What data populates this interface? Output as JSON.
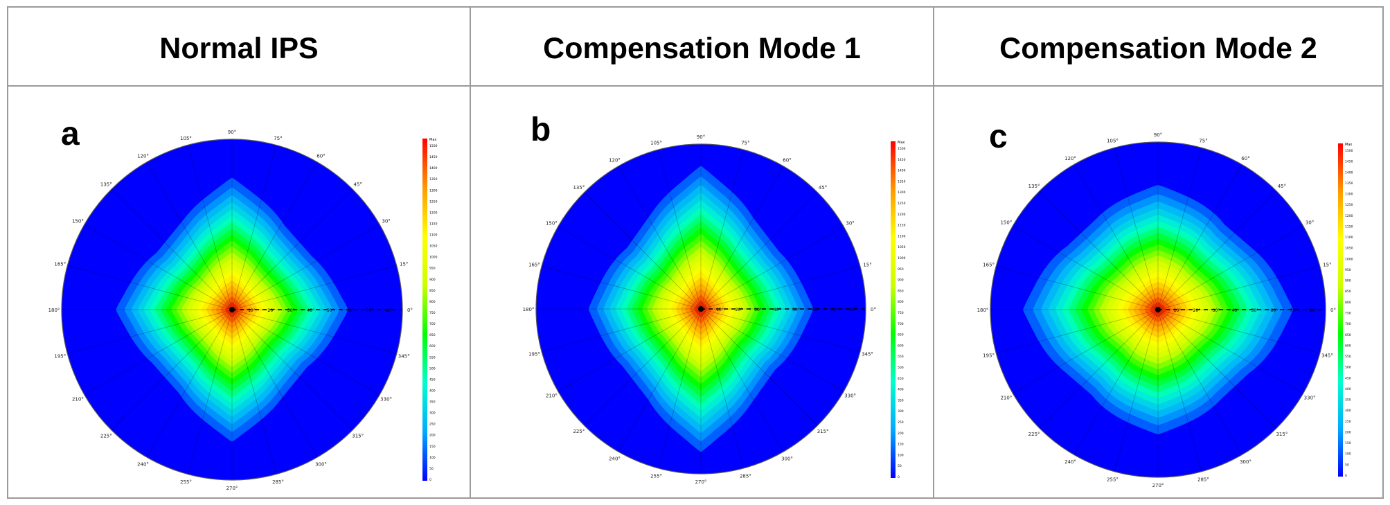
{
  "figure": {
    "panels": [
      {
        "title": "Normal IPS",
        "letter": "a"
      },
      {
        "title": "Compensation Mode 1",
        "letter": "b"
      },
      {
        "title": "Compensation Mode 2",
        "letter": "c"
      }
    ]
  },
  "chart_data": [
    {
      "type": "heatmap",
      "subtype": "polar-contour",
      "title": "Normal IPS",
      "panel_label": "a",
      "angle_labels": [
        "0°",
        "15°",
        "30°",
        "45°",
        "60°",
        "75°",
        "90°",
        "105°",
        "120°",
        "135°",
        "150°",
        "165°",
        "180°",
        "195°",
        "210°",
        "225°",
        "240°",
        "255°",
        "270°",
        "285°",
        "300°",
        "315°",
        "330°",
        "345°"
      ],
      "radial_labels": [
        "10°",
        "20°",
        "30°",
        "40°",
        "50°",
        "60°",
        "70°",
        "80°"
      ],
      "colorbar": {
        "min": 0,
        "max_label": "Max",
        "ticks": [
          "0",
          "50",
          "100",
          "150",
          "200",
          "250",
          "300",
          "350",
          "400",
          "450",
          "500",
          "550",
          "600",
          "650",
          "700",
          "750",
          "800",
          "850",
          "900",
          "950",
          "1000",
          "1050",
          "1100",
          "1150",
          "1200",
          "1250",
          "1300",
          "1350",
          "1400",
          "1450",
          "1500"
        ],
        "colors": [
          "#0000ff",
          "#00aaff",
          "#00ffcc",
          "#00ff00",
          "#ccff00",
          "#ffff00",
          "#ff9900",
          "#ff0000"
        ]
      },
      "lobe_shape": {
        "peak_level": 1500,
        "horizontal_reach": 0.44,
        "vertical_reach": 0.5,
        "diagonal_reach": 0.12
      }
    },
    {
      "type": "heatmap",
      "subtype": "polar-contour",
      "title": "Compensation Mode 1",
      "panel_label": "b",
      "angle_labels": [
        "0°",
        "15°",
        "30°",
        "45°",
        "60°",
        "75°",
        "90°",
        "105°",
        "120°",
        "135°",
        "150°",
        "165°",
        "180°",
        "195°",
        "210°",
        "225°",
        "240°",
        "255°",
        "270°",
        "285°",
        "300°",
        "315°",
        "330°",
        "345°"
      ],
      "radial_labels": [
        "10°",
        "20°",
        "30°",
        "40°",
        "50°",
        "60°",
        "70°",
        "80°"
      ],
      "colorbar": {
        "min": 0,
        "max_label": "Max",
        "ticks": [
          "0",
          "50",
          "100",
          "150",
          "200",
          "250",
          "300",
          "350",
          "400",
          "450",
          "500",
          "550",
          "600",
          "650",
          "700",
          "750",
          "800",
          "850",
          "900",
          "950",
          "1000",
          "1050",
          "1100",
          "1150",
          "1200",
          "1250",
          "1300",
          "1350",
          "1400",
          "1450",
          "1500"
        ],
        "colors": [
          "#0000ff",
          "#00aaff",
          "#00ffcc",
          "#00ff00",
          "#ccff00",
          "#ffff00",
          "#ff9900",
          "#ff0000"
        ]
      },
      "lobe_shape": {
        "peak_level": 1500,
        "horizontal_reach": 0.44,
        "vertical_reach": 0.56,
        "diagonal_reach": 0.13
      }
    },
    {
      "type": "heatmap",
      "subtype": "polar-contour",
      "title": "Compensation Mode 2",
      "panel_label": "c",
      "angle_labels": [
        "0°",
        "15°",
        "30°",
        "45°",
        "60°",
        "75°",
        "90°",
        "105°",
        "120°",
        "135°",
        "150°",
        "165°",
        "180°",
        "195°",
        "210°",
        "225°",
        "240°",
        "255°",
        "270°",
        "285°",
        "300°",
        "315°",
        "330°",
        "345°"
      ],
      "radial_labels": [
        "10°",
        "20°",
        "30°",
        "40°",
        "50°",
        "60°",
        "70°",
        "80°"
      ],
      "colorbar": {
        "min": 0,
        "max_label": "Max",
        "ticks": [
          "0",
          "50",
          "100",
          "150",
          "200",
          "250",
          "300",
          "350",
          "400",
          "450",
          "500",
          "550",
          "600",
          "650",
          "700",
          "750",
          "800",
          "850",
          "900",
          "950",
          "1000",
          "1050",
          "1100",
          "1150",
          "1200",
          "1250",
          "1300",
          "1350",
          "1400",
          "1450",
          "1500"
        ],
        "colors": [
          "#0000ff",
          "#00aaff",
          "#00ffcc",
          "#00ff00",
          "#ccff00",
          "#ffff00",
          "#ff9900",
          "#ff0000"
        ]
      },
      "lobe_shape": {
        "peak_level": 1500,
        "horizontal_reach": 0.52,
        "vertical_reach": 0.48,
        "diagonal_reach": 0.17
      }
    }
  ]
}
